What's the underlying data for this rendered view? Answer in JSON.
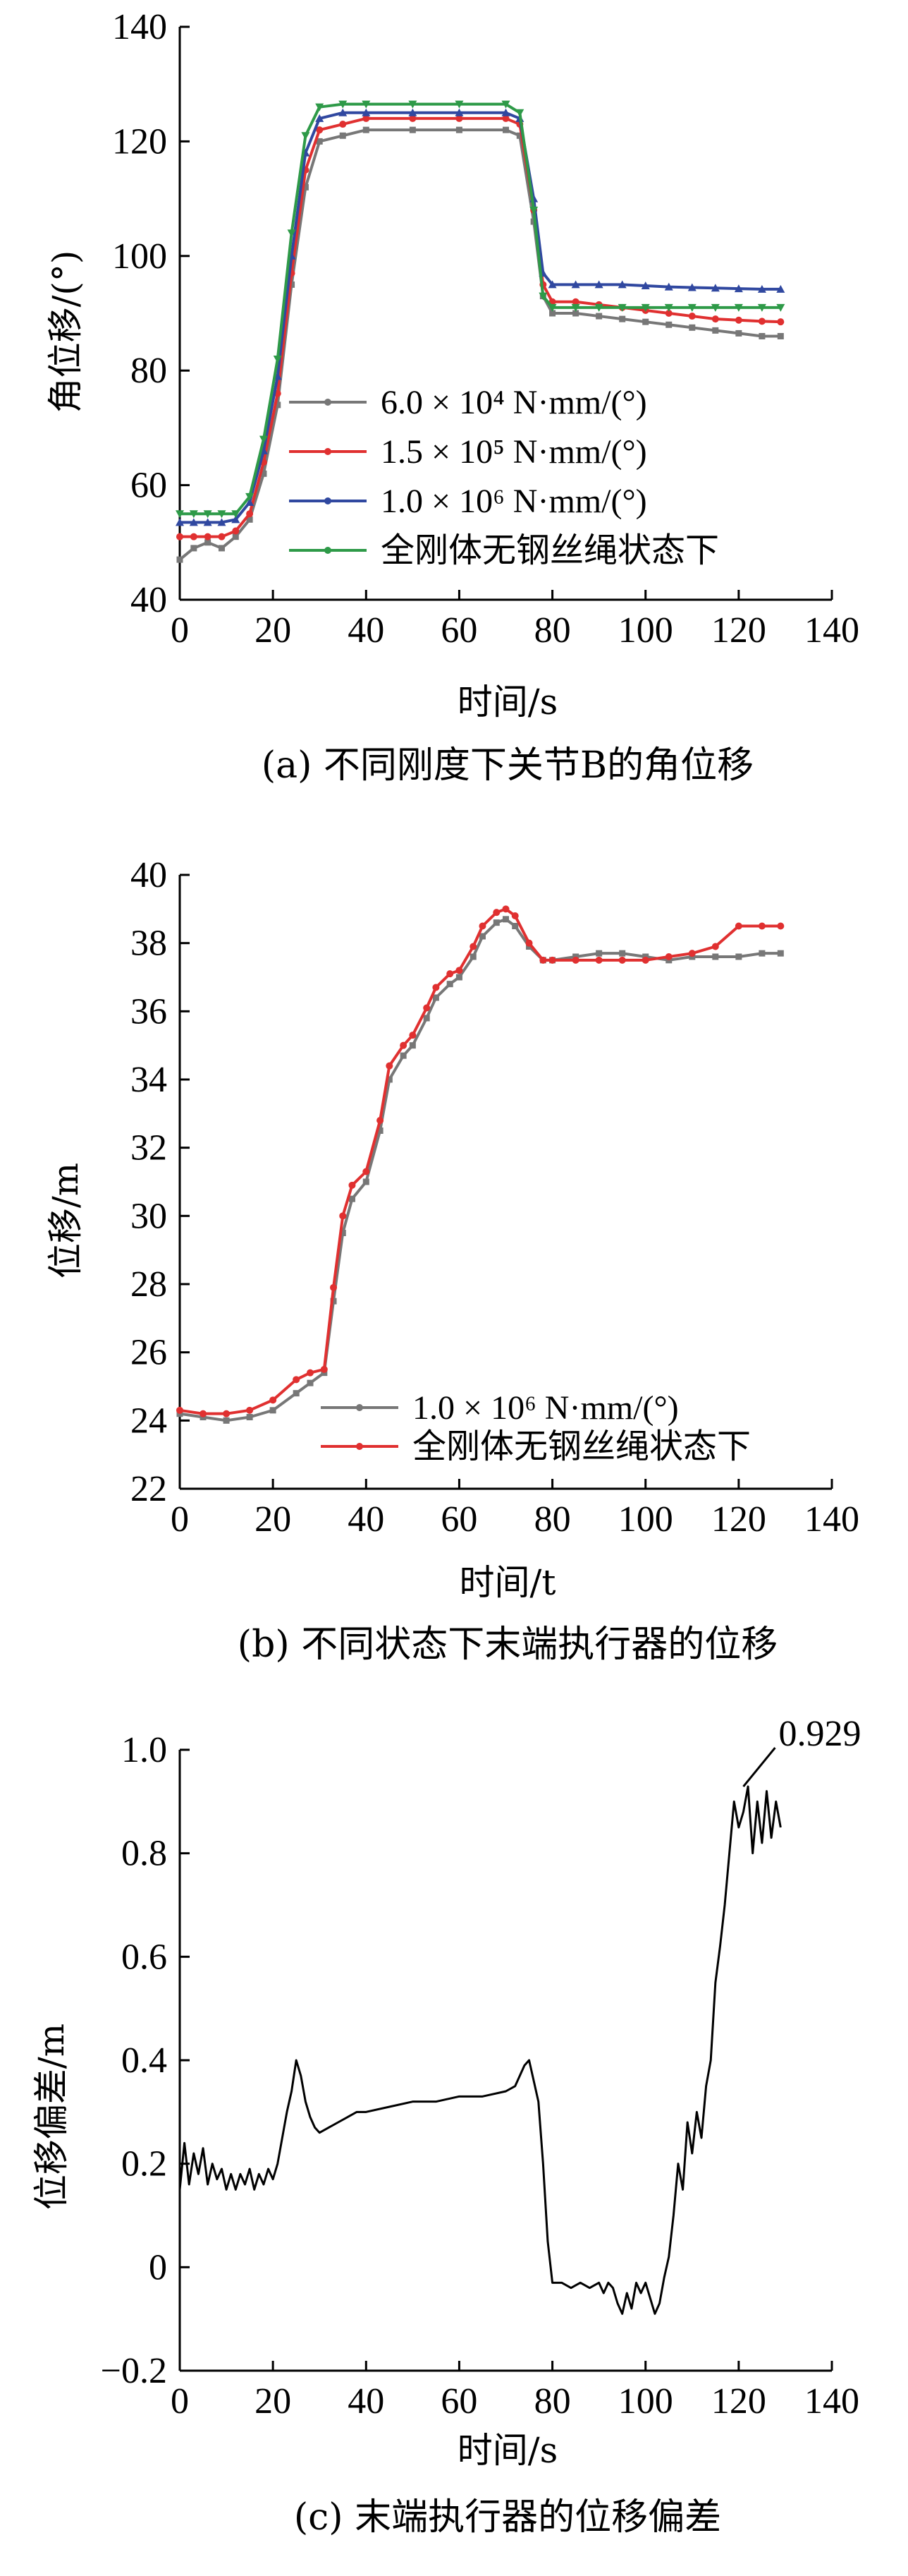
{
  "chart_data": [
    {
      "type": "line",
      "caption": "(a)  不同刚度下关节B的角位移",
      "xlabel": "时间/s",
      "ylabel": "角位移/(°)",
      "xlim": [
        0,
        140
      ],
      "ylim": [
        40,
        140
      ],
      "xticks": [
        "0",
        "20",
        "40",
        "60",
        "80",
        "100",
        "120",
        "140"
      ],
      "yticks": [
        "40",
        "60",
        "80",
        "100",
        "120",
        "140"
      ],
      "legend_position": "center-left",
      "series": [
        {
          "name": "6.0 × 10⁴ N·mm/(°)",
          "color": "#777777",
          "marker": "square",
          "x": [
            0,
            3,
            6,
            9,
            12,
            15,
            18,
            21,
            24,
            27,
            30,
            35,
            40,
            50,
            60,
            70,
            73,
            76,
            78,
            80,
            85,
            90,
            95,
            100,
            105,
            110,
            115,
            120,
            125,
            129
          ],
          "y": [
            47,
            49,
            50,
            49,
            51,
            54,
            62,
            74,
            95,
            112,
            120,
            121,
            122,
            122,
            122,
            122,
            121,
            106,
            93,
            90,
            90,
            89.5,
            89,
            88.5,
            88,
            87.5,
            87,
            86.5,
            86,
            86
          ]
        },
        {
          "name": "1.5 × 10⁵ N·mm/(°)",
          "color": "#e03030",
          "marker": "circle",
          "x": [
            0,
            3,
            6,
            9,
            12,
            15,
            18,
            21,
            24,
            27,
            30,
            35,
            40,
            50,
            60,
            70,
            73,
            76,
            78,
            80,
            85,
            90,
            95,
            100,
            105,
            110,
            115,
            120,
            125,
            129
          ],
          "y": [
            51,
            51,
            51,
            51,
            52,
            55,
            64,
            76,
            97,
            115,
            122,
            123,
            124,
            124,
            124,
            124,
            123,
            108,
            95,
            92,
            92,
            91.5,
            91,
            90.5,
            90,
            89.5,
            89,
            88.8,
            88.6,
            88.5
          ]
        },
        {
          "name": "1.0 × 10⁶ N·mm/(°)",
          "color": "#3048a0",
          "marker": "triangle",
          "x": [
            0,
            3,
            6,
            9,
            12,
            15,
            18,
            21,
            24,
            27,
            30,
            35,
            40,
            50,
            60,
            70,
            73,
            76,
            78,
            80,
            85,
            90,
            95,
            100,
            105,
            110,
            115,
            120,
            125,
            129
          ],
          "y": [
            53.5,
            53.5,
            53.5,
            53.5,
            54,
            57,
            66,
            79,
            100,
            118,
            124,
            125,
            125,
            125,
            125,
            125,
            124,
            110,
            97,
            95,
            95,
            95,
            95,
            94.8,
            94.6,
            94.5,
            94.4,
            94.3,
            94.2,
            94.2
          ]
        },
        {
          "name": "全刚体无钢丝绳状态下",
          "color": "#2e9a48",
          "marker": "triangle-down",
          "x": [
            0,
            3,
            6,
            9,
            12,
            15,
            18,
            21,
            24,
            27,
            30,
            35,
            40,
            50,
            60,
            70,
            73,
            76,
            78,
            80,
            85,
            90,
            95,
            100,
            105,
            110,
            115,
            120,
            125,
            129
          ],
          "y": [
            55,
            55,
            55,
            55,
            55,
            58,
            68,
            82,
            104,
            121,
            126,
            126.5,
            126.5,
            126.5,
            126.5,
            126.5,
            125,
            108,
            93,
            91,
            91,
            91,
            91,
            91,
            91,
            91,
            91,
            91,
            91,
            91
          ]
        }
      ]
    },
    {
      "type": "line",
      "caption": "(b)  不同状态下末端执行器的位移",
      "xlabel": "时间/t",
      "ylabel": "位移/m",
      "xlim": [
        0,
        140
      ],
      "ylim": [
        22,
        40
      ],
      "xticks": [
        "0",
        "20",
        "40",
        "60",
        "80",
        "100",
        "120",
        "140"
      ],
      "yticks": [
        "22",
        "24",
        "26",
        "28",
        "30",
        "32",
        "34",
        "36",
        "38",
        "40"
      ],
      "legend_position": "bottom-center",
      "series": [
        {
          "name": "1.0 × 10⁶ N·mm/(°)",
          "color": "#777777",
          "marker": "square",
          "x": [
            0,
            5,
            10,
            15,
            20,
            25,
            28,
            31,
            33,
            35,
            37,
            40,
            43,
            45,
            48,
            50,
            53,
            55,
            58,
            60,
            63,
            65,
            68,
            70,
            72,
            75,
            78,
            80,
            85,
            90,
            95,
            100,
            105,
            110,
            115,
            120,
            125,
            129
          ],
          "y": [
            24.2,
            24.1,
            24.0,
            24.1,
            24.3,
            24.8,
            25.1,
            25.4,
            27.5,
            29.5,
            30.5,
            31.0,
            32.5,
            34.0,
            34.7,
            35.0,
            35.8,
            36.4,
            36.8,
            37.0,
            37.6,
            38.2,
            38.6,
            38.7,
            38.5,
            37.9,
            37.5,
            37.5,
            37.6,
            37.7,
            37.7,
            37.6,
            37.5,
            37.6,
            37.6,
            37.6,
            37.7,
            37.7
          ]
        },
        {
          "name": "全刚体无钢丝绳状态下",
          "color": "#e03030",
          "marker": "circle",
          "x": [
            0,
            5,
            10,
            15,
            20,
            25,
            28,
            31,
            33,
            35,
            37,
            40,
            43,
            45,
            48,
            50,
            53,
            55,
            58,
            60,
            63,
            65,
            68,
            70,
            72,
            75,
            78,
            80,
            85,
            90,
            95,
            100,
            105,
            110,
            115,
            120,
            125,
            129
          ],
          "y": [
            24.3,
            24.2,
            24.2,
            24.3,
            24.6,
            25.2,
            25.4,
            25.5,
            27.9,
            30.0,
            30.9,
            31.3,
            32.8,
            34.4,
            35.0,
            35.3,
            36.1,
            36.7,
            37.1,
            37.2,
            37.9,
            38.5,
            38.9,
            39.0,
            38.8,
            38.0,
            37.5,
            37.5,
            37.5,
            37.5,
            37.5,
            37.5,
            37.6,
            37.7,
            37.9,
            38.5,
            38.5,
            38.5
          ]
        }
      ]
    },
    {
      "type": "line",
      "caption": "(c)  末端执行器的位移偏差",
      "xlabel": "时间/s",
      "ylabel": "位移偏差/m",
      "xlim": [
        0,
        140
      ],
      "ylim": [
        -0.2,
        1.0
      ],
      "xticks": [
        "0",
        "20",
        "40",
        "60",
        "80",
        "100",
        "120",
        "140"
      ],
      "yticks": [
        "−0.2",
        "0",
        "0.2",
        "0.4",
        "0.6",
        "0.8",
        "1.0"
      ],
      "annotation": {
        "text": "0.929",
        "x": 121,
        "y": 0.929
      },
      "series": [
        {
          "name": "",
          "color": "#000000",
          "x": [
            0,
            1,
            2,
            3,
            4,
            5,
            6,
            7,
            8,
            9,
            10,
            11,
            12,
            13,
            14,
            15,
            16,
            17,
            18,
            19,
            20,
            21,
            22,
            23,
            24,
            25,
            26,
            27,
            28,
            29,
            30,
            32,
            34,
            36,
            38,
            40,
            45,
            50,
            55,
            60,
            65,
            70,
            72,
            73,
            74,
            75,
            76,
            77,
            78,
            79,
            80,
            82,
            84,
            86,
            88,
            90,
            91,
            92,
            93,
            94,
            95,
            96,
            97,
            98,
            99,
            100,
            101,
            102,
            103,
            104,
            105,
            106,
            107,
            108,
            109,
            110,
            111,
            112,
            113,
            114,
            115,
            116,
            117,
            118,
            119,
            120,
            121,
            122,
            123,
            124,
            125,
            126,
            127,
            128,
            129
          ],
          "y": [
            0.15,
            0.24,
            0.16,
            0.22,
            0.18,
            0.23,
            0.16,
            0.2,
            0.17,
            0.19,
            0.15,
            0.18,
            0.15,
            0.18,
            0.16,
            0.19,
            0.15,
            0.18,
            0.16,
            0.19,
            0.17,
            0.2,
            0.25,
            0.3,
            0.34,
            0.4,
            0.37,
            0.32,
            0.29,
            0.27,
            0.26,
            0.27,
            0.28,
            0.29,
            0.3,
            0.3,
            0.31,
            0.32,
            0.32,
            0.33,
            0.33,
            0.34,
            0.35,
            0.37,
            0.39,
            0.4,
            0.36,
            0.32,
            0.2,
            0.05,
            -0.03,
            -0.03,
            -0.04,
            -0.03,
            -0.04,
            -0.03,
            -0.05,
            -0.03,
            -0.04,
            -0.07,
            -0.09,
            -0.05,
            -0.08,
            -0.03,
            -0.05,
            -0.03,
            -0.06,
            -0.09,
            -0.07,
            -0.02,
            0.02,
            0.1,
            0.2,
            0.15,
            0.28,
            0.22,
            0.3,
            0.25,
            0.35,
            0.4,
            0.55,
            0.62,
            0.7,
            0.8,
            0.9,
            0.85,
            0.88,
            0.929,
            0.8,
            0.9,
            0.82,
            0.92,
            0.83,
            0.9,
            0.85
          ]
        }
      ]
    }
  ]
}
